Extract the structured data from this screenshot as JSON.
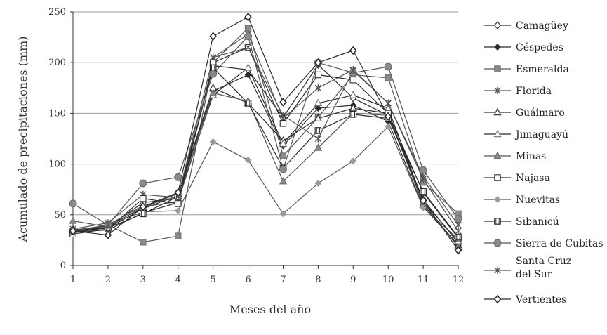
{
  "chart_data": {
    "type": "line",
    "xlabel": "Meses del año",
    "ylabel": "Acumulado de precipitaciones (mm)",
    "x": [
      1,
      2,
      3,
      4,
      5,
      6,
      7,
      8,
      9,
      10,
      11,
      12
    ],
    "ylim": [
      0,
      250
    ],
    "yticks": [
      0,
      50,
      100,
      150,
      200,
      250
    ],
    "grid": "horizontal",
    "legend_position": "right",
    "series": [
      {
        "name": "Camagüey",
        "marker": "diamond-open",
        "values": [
          33,
          35,
          52,
          62,
          197,
          193,
          146,
          198,
          165,
          148,
          65,
          22
        ]
      },
      {
        "name": "Céspedes",
        "marker": "diamond-filled",
        "values": [
          34,
          37,
          56,
          69,
          172,
          188,
          118,
          155,
          158,
          142,
          58,
          20
        ]
      },
      {
        "name": "Esmeralda",
        "marker": "square-filled",
        "values": [
          32,
          40,
          23,
          29,
          200,
          234,
          108,
          146,
          188,
          185,
          82,
          51
        ]
      },
      {
        "name": "Florida",
        "marker": "star",
        "values": [
          36,
          42,
          70,
          67,
          205,
          228,
          145,
          175,
          193,
          160,
          88,
          40
        ]
      },
      {
        "name": "Guáimaro",
        "marker": "triangle-open",
        "values": [
          35,
          39,
          57,
          71,
          175,
          160,
          123,
          145,
          155,
          150,
          60,
          20
        ]
      },
      {
        "name": "Jimaguayú",
        "marker": "triangle-open-light",
        "values": [
          34,
          38,
          62,
          66,
          168,
          195,
          120,
          160,
          168,
          155,
          63,
          24
        ]
      },
      {
        "name": "Minas",
        "marker": "triangle-filled",
        "values": [
          44,
          38,
          58,
          63,
          170,
          162,
          83,
          116,
          150,
          148,
          62,
          18
        ]
      },
      {
        "name": "Najasa",
        "marker": "square-open",
        "values": [
          31,
          36,
          66,
          61,
          200,
          215,
          140,
          188,
          183,
          150,
          72,
          27
        ]
      },
      {
        "name": "Nuevitas",
        "marker": "diamond-gray",
        "values": [
          34,
          40,
          53,
          54,
          122,
          104,
          51,
          81,
          103,
          137,
          57,
          26
        ]
      },
      {
        "name": "Sibanicú",
        "marker": "square-cross",
        "values": [
          33,
          37,
          51,
          68,
          195,
          160,
          96,
          133,
          149,
          145,
          73,
          28
        ]
      },
      {
        "name": "Sierra de Cubitas",
        "marker": "circle-filled",
        "values": [
          61,
          40,
          81,
          87,
          189,
          226,
          95,
          200,
          190,
          196,
          94,
          46
        ]
      },
      {
        "name": "Santa Cruz del Sur",
        "legend_lines": [
          "Santa Cruz",
          "del Sur"
        ],
        "marker": "star",
        "values": [
          34,
          40,
          59,
          68,
          205,
          215,
          148,
          125,
          192,
          160,
          85,
          34
        ]
      },
      {
        "name": "Vertientes",
        "marker": "diamond-open-bold",
        "values": [
          34,
          30,
          58,
          72,
          226,
          245,
          161,
          200,
          212,
          147,
          64,
          15
        ]
      }
    ]
  },
  "colors": {
    "line": "#2b2b2b",
    "gray_series": "#8a8a8a",
    "gray_fill": "#9a9a9a",
    "grid": "#9a9a9a",
    "axis": "#333333",
    "background": "#ffffff"
  }
}
